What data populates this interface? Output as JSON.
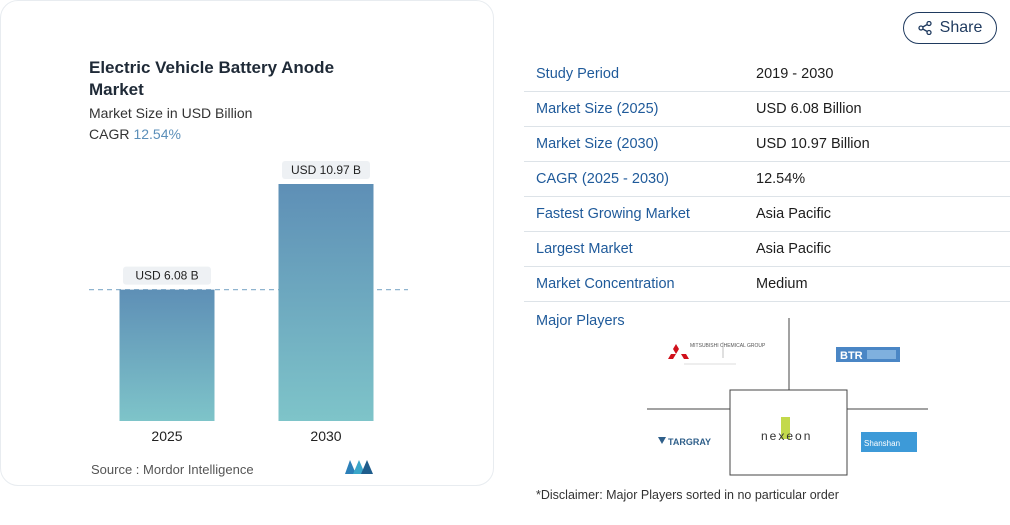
{
  "card": {
    "title": "Electric Vehicle Battery Anode Market",
    "subtitle": "Market Size in USD Billion",
    "cagr_label": "CAGR",
    "cagr_value": "12.54%",
    "source": "Source :  Mordor Intelligence"
  },
  "chart_data": {
    "type": "bar",
    "categories": [
      "2025",
      "2030"
    ],
    "values": [
      6.08,
      10.97
    ],
    "data_labels": [
      "USD 6.08 B",
      "USD 10.97 B"
    ],
    "title": "Electric Vehicle Battery Anode Market",
    "subtitle": "Market Size in USD Billion",
    "xlabel": "",
    "ylabel": "",
    "ylim": [
      0,
      12
    ],
    "grid": false,
    "reference_line": 6.08,
    "colors": {
      "top": "#5e8fb6",
      "bottom": "#7ec4c9"
    }
  },
  "share": {
    "label": "Share",
    "icon": "share-icon"
  },
  "facts": [
    {
      "key": "Study Period",
      "value": "2019 - 2030"
    },
    {
      "key": "Market Size (2025)",
      "value": "USD 6.08 Billion"
    },
    {
      "key": "Market Size (2030)",
      "value": "USD 10.97 Billion"
    },
    {
      "key": "CAGR (2025 - 2030)",
      "value": "12.54%"
    },
    {
      "key": "Fastest Growing Market",
      "value": "Asia Pacific"
    },
    {
      "key": "Largest Market",
      "value": "Asia Pacific"
    },
    {
      "key": "Market Concentration",
      "value": "Medium"
    }
  ],
  "players": {
    "label": "Major Players",
    "logos": [
      "MITSUBISHI CHEMICAL GROUP",
      "BTR",
      "TARGRAY",
      "nexeon",
      "Shanshan"
    ]
  },
  "disclaimer": "*Disclaimer: Major Players sorted in no particular order"
}
